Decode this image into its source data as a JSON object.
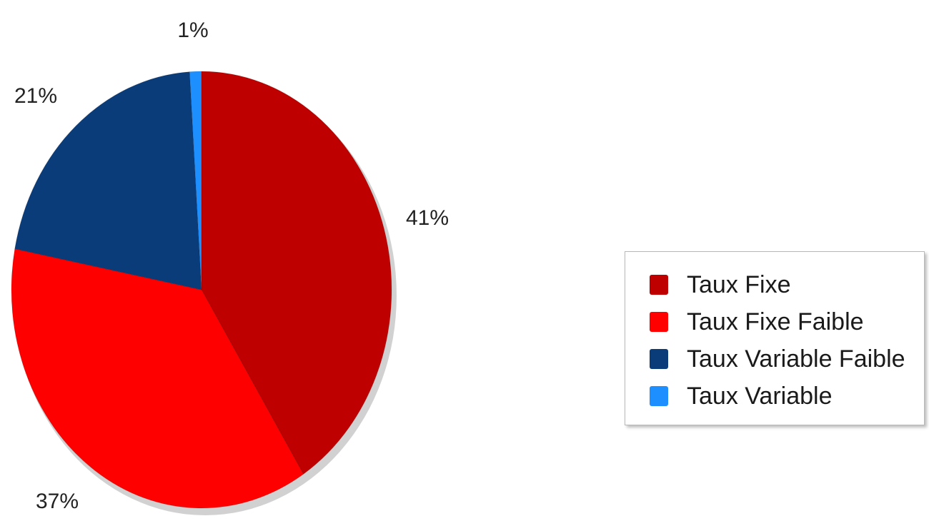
{
  "chart_data": {
    "type": "pie",
    "title": "",
    "slices": [
      {
        "label": "Taux Fixe",
        "value": 41,
        "display": "41%",
        "color": "#bf0000"
      },
      {
        "label": "Taux Fixe Faible",
        "value": 37,
        "display": "37%",
        "color": "#ff0000"
      },
      {
        "label": "Taux Variable Faible",
        "value": 21,
        "display": "21%",
        "color": "#0b3c7a"
      },
      {
        "label": "Taux Variable",
        "value": 1,
        "display": "1%",
        "color": "#1e8fff"
      }
    ],
    "legend_placement": "right"
  }
}
